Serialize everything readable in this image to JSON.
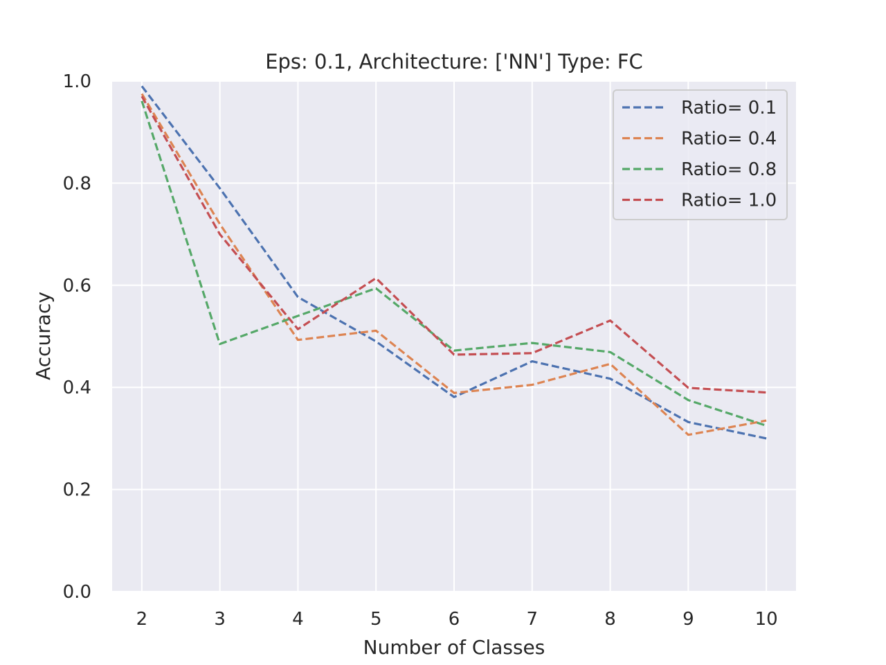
{
  "chart_data": {
    "type": "line",
    "title": "Eps: 0.1, Architecture: ['NN'] Type: FC",
    "xlabel": "Number of Classes",
    "ylabel": "Accuracy",
    "x": [
      2,
      3,
      4,
      5,
      6,
      7,
      8,
      9,
      10
    ],
    "xlim": [
      1.62,
      10.38
    ],
    "ylim": [
      0.0,
      1.0
    ],
    "xticks": [
      "2",
      "3",
      "4",
      "5",
      "6",
      "7",
      "8",
      "9",
      "10"
    ],
    "yticks": [
      "0.0",
      "0.2",
      "0.4",
      "0.6",
      "0.8",
      "1.0"
    ],
    "grid": true,
    "legend_position": "top-right",
    "line_style": "dashed",
    "background_color": "#EAEAF2",
    "series": [
      {
        "name": "Ratio= 0.1",
        "color": "#4C72B0",
        "values": [
          0.99,
          0.79,
          0.577,
          0.49,
          0.381,
          0.451,
          0.417,
          0.332,
          0.3
        ]
      },
      {
        "name": "Ratio= 0.4",
        "color": "#DD8452",
        "values": [
          0.975,
          0.72,
          0.493,
          0.511,
          0.389,
          0.405,
          0.446,
          0.307,
          0.335
        ]
      },
      {
        "name": "Ratio= 0.8",
        "color": "#55A868",
        "values": [
          0.961,
          0.485,
          0.54,
          0.594,
          0.472,
          0.487,
          0.469,
          0.375,
          0.325
        ]
      },
      {
        "name": "Ratio= 1.0",
        "color": "#C44E52",
        "values": [
          0.97,
          0.7,
          0.514,
          0.614,
          0.464,
          0.467,
          0.531,
          0.399,
          0.39
        ]
      }
    ]
  }
}
